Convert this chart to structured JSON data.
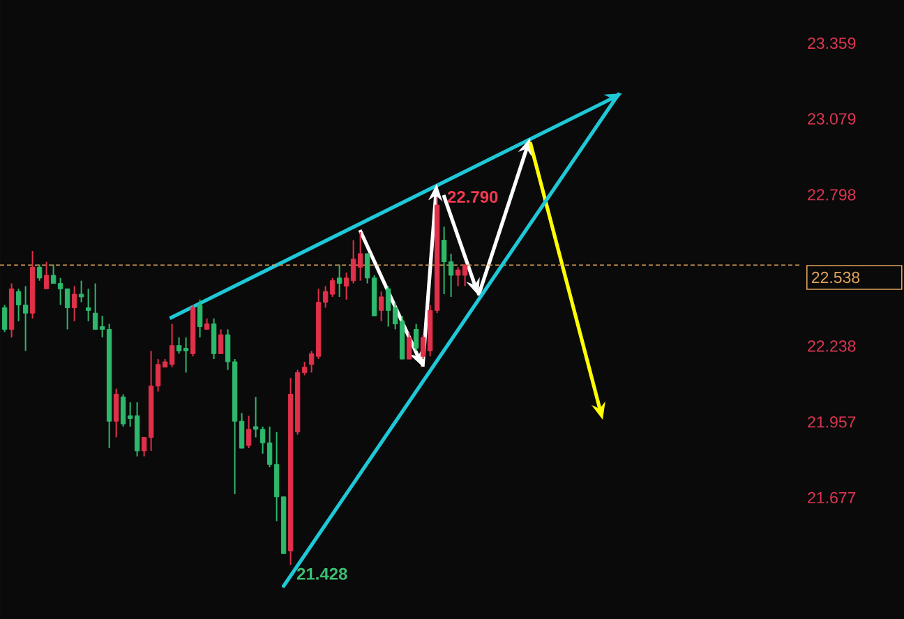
{
  "chart_data": {
    "type": "candlestick",
    "categories": [
      null,
      null,
      null,
      null,
      null,
      null,
      null,
      null,
      null,
      null,
      null,
      null,
      null,
      null,
      null,
      null,
      null,
      null,
      null,
      null,
      null,
      null,
      null,
      null,
      null,
      null,
      null,
      null,
      null,
      null,
      null,
      null,
      null,
      null,
      null,
      null,
      null,
      null,
      null,
      null,
      null,
      null,
      null,
      null,
      null,
      null,
      null,
      null,
      null,
      null,
      null,
      null,
      null,
      null,
      null,
      null,
      null,
      null,
      null,
      null,
      null,
      null,
      null,
      null,
      null,
      null,
      null,
      null,
      null,
      null,
      null,
      null,
      null,
      null,
      null,
      null,
      null,
      null,
      null,
      null,
      null,
      null,
      null,
      null,
      null,
      null,
      null,
      null,
      null,
      null,
      null,
      null,
      null,
      null,
      null,
      null,
      null,
      null,
      null,
      null,
      null,
      null,
      null,
      null,
      null,
      null,
      null,
      null,
      null,
      null,
      null,
      null,
      null,
      null,
      null
    ],
    "ohlc": [
      [
        22.38,
        22.39,
        22.29,
        22.3
      ],
      [
        22.3,
        22.47,
        22.27,
        22.45
      ],
      [
        22.44,
        22.45,
        22.33,
        22.39
      ],
      [
        22.39,
        22.46,
        22.22,
        22.36
      ],
      [
        22.36,
        22.59,
        22.34,
        22.53
      ],
      [
        22.53,
        22.54,
        22.48,
        22.49
      ],
      [
        22.45,
        22.55,
        22.45,
        22.5
      ],
      [
        22.5,
        22.54,
        22.47,
        22.47
      ],
      [
        22.47,
        22.49,
        22.39,
        22.45
      ],
      [
        22.45,
        22.45,
        22.3,
        22.38
      ],
      [
        22.38,
        22.46,
        22.33,
        22.43
      ],
      [
        22.43,
        22.48,
        22.4,
        22.42
      ],
      [
        22.38,
        22.45,
        22.33,
        22.37
      ],
      [
        22.36,
        22.47,
        22.3,
        22.3
      ],
      [
        22.31,
        22.35,
        22.27,
        22.3
      ],
      [
        22.3,
        22.32,
        21.86,
        21.96
      ],
      [
        21.96,
        22.08,
        21.9,
        22.06
      ],
      [
        22.05,
        22.06,
        21.94,
        21.95
      ],
      [
        21.98,
        22.03,
        21.94,
        21.97
      ],
      [
        21.98,
        22.03,
        21.83,
        21.85
      ],
      [
        21.85,
        21.9,
        21.83,
        21.9
      ],
      [
        21.9,
        22.22,
        21.85,
        22.09
      ],
      [
        22.09,
        22.19,
        22.07,
        22.17
      ],
      [
        22.16,
        22.19,
        22.16,
        22.18
      ],
      [
        22.17,
        22.32,
        22.16,
        22.24
      ],
      [
        22.24,
        22.27,
        22.21,
        22.22
      ],
      [
        22.23,
        22.27,
        22.14,
        22.22
      ],
      [
        22.21,
        22.39,
        22.2,
        22.38
      ],
      [
        22.39,
        22.41,
        22.27,
        22.31
      ],
      [
        22.3,
        22.34,
        22.3,
        22.32
      ],
      [
        22.32,
        22.34,
        22.19,
        22.21
      ],
      [
        22.21,
        22.3,
        22.21,
        22.28
      ],
      [
        22.28,
        22.3,
        22.15,
        22.18
      ],
      [
        22.18,
        22.19,
        21.69,
        21.96
      ],
      [
        21.96,
        21.99,
        21.86,
        21.86
      ],
      [
        21.87,
        21.98,
        21.86,
        21.93
      ],
      [
        21.94,
        22.05,
        21.9,
        21.93
      ],
      [
        21.93,
        21.94,
        21.84,
        21.88
      ],
      [
        21.88,
        21.94,
        21.79,
        21.8
      ],
      [
        21.8,
        21.92,
        21.59,
        21.68
      ],
      [
        21.68,
        21.68,
        21.47,
        21.47
      ],
      [
        21.48,
        22.12,
        21.428,
        22.06
      ],
      [
        21.92,
        22.15,
        21.91,
        22.14
      ],
      [
        22.14,
        22.18,
        22.13,
        22.16
      ],
      [
        22.17,
        22.22,
        22.14,
        22.21
      ],
      [
        22.2,
        22.45,
        22.19,
        22.4
      ],
      [
        22.4,
        22.46,
        22.38,
        22.44
      ],
      [
        22.43,
        22.49,
        22.42,
        22.48
      ],
      [
        22.49,
        22.54,
        22.42,
        22.47
      ],
      [
        22.46,
        22.51,
        22.41,
        22.49
      ],
      [
        22.48,
        22.63,
        22.47,
        22.56
      ],
      [
        22.53,
        22.66,
        22.48,
        22.58
      ],
      [
        22.58,
        22.58,
        22.47,
        22.49
      ],
      [
        22.49,
        22.5,
        22.35,
        22.35
      ],
      [
        22.37,
        22.44,
        22.33,
        22.42
      ],
      [
        22.45,
        22.46,
        22.31,
        22.37
      ],
      [
        22.38,
        22.4,
        22.3,
        22.32
      ],
      [
        22.33,
        22.35,
        22.19,
        22.19
      ],
      [
        22.19,
        22.29,
        22.19,
        22.27
      ],
      [
        22.3,
        22.32,
        22.22,
        22.23
      ],
      [
        22.2,
        22.28,
        22.19,
        22.27
      ],
      [
        22.22,
        22.39,
        22.2,
        22.37
      ],
      [
        22.37,
        22.79,
        22.36,
        22.76
      ],
      [
        22.63,
        22.68,
        22.43,
        22.55
      ],
      [
        22.55,
        22.58,
        22.42,
        22.5
      ],
      [
        22.5,
        22.53,
        22.46,
        22.52
      ],
      [
        22.5,
        22.54,
        22.46,
        22.538
      ],
      null,
      null,
      null,
      null,
      null,
      null,
      null,
      null,
      null,
      null,
      null,
      null,
      null,
      null,
      null,
      null,
      null,
      null,
      null,
      null,
      null,
      null,
      null,
      null,
      null,
      null,
      null,
      null,
      null,
      null,
      null,
      null,
      null,
      null,
      null,
      null,
      null,
      null,
      null,
      null,
      null,
      null,
      null,
      null,
      null,
      null,
      null,
      null
    ],
    "colors": [
      "#2eb86c",
      "#e0304a",
      "#2eb86c",
      "#2eb86c",
      "#e0304a",
      "#2eb86c",
      "#e0304a",
      "#2eb86c",
      "#2eb86c",
      "#2eb86c",
      "#e0304a",
      "#2eb86c",
      "#2eb86c",
      "#2eb86c",
      "#2eb86c",
      "#2eb86c",
      "#e0304a",
      "#2eb86c",
      "#2eb86c",
      "#2eb86c",
      "#e0304a",
      "#e0304a",
      "#e0304a",
      "#e0304a",
      "#e0304a",
      "#2eb86c",
      "#2eb86c",
      "#e0304a",
      "#2eb86c",
      "#e0304a",
      "#2eb86c",
      "#e0304a",
      "#2eb86c",
      "#2eb86c",
      "#2eb86c",
      "#e0304a",
      "#2eb86c",
      "#2eb86c",
      "#2eb86c",
      "#2eb86c",
      "#2eb86c",
      "#e0304a",
      "#e0304a",
      "#e0304a",
      "#e0304a",
      "#e0304a",
      "#e0304a",
      "#e0304a",
      "#2eb86c",
      "#e0304a",
      "#e0304a",
      "#e0304a",
      "#2eb86c",
      "#2eb86c",
      "#e0304a",
      "#2eb86c",
      "#2eb86c",
      "#2eb86c",
      "#e0304a",
      "#2eb86c",
      "#e0304a",
      "#e0304a",
      "#e0304a",
      "#2eb86c",
      "#2eb86c",
      "#e0304a",
      "#e0304a",
      null,
      null,
      null,
      null,
      null,
      null,
      null,
      null,
      null,
      null,
      null,
      null,
      null,
      null,
      null,
      null,
      null,
      null,
      null,
      null,
      null,
      null,
      null,
      null,
      null,
      null,
      null,
      null,
      null,
      null,
      null,
      null,
      null,
      null,
      null,
      null,
      null,
      null,
      null,
      null,
      null,
      null,
      null,
      null,
      null,
      null,
      null,
      null
    ],
    "series": [
      {
        "type": "line",
        "color": "#1ec8d6",
        "values": [
          null,
          null,
          null,
          null,
          null,
          null,
          null,
          null,
          null,
          null,
          null,
          null,
          null,
          null,
          null,
          null,
          null,
          null,
          null,
          null,
          null,
          null,
          null,
          null,
          null,
          null,
          null,
          null,
          null,
          null,
          null,
          null,
          null,
          null,
          null,
          null,
          null,
          null,
          null,
          null,
          21.35,
          null,
          null,
          null,
          null,
          null,
          null,
          null,
          null,
          null,
          null,
          null,
          null,
          null,
          null,
          null,
          null,
          null,
          null,
          null,
          null,
          null,
          null,
          null,
          null,
          null,
          null,
          null,
          null,
          null,
          null,
          null,
          null,
          null,
          null,
          null,
          null,
          null,
          null,
          null,
          null,
          null,
          null,
          null,
          null,
          null,
          null,
          null,
          23.17,
          null,
          null,
          null,
          null,
          null,
          null,
          null,
          null,
          null,
          null,
          null,
          null,
          null,
          null,
          null,
          null,
          null,
          null,
          null,
          null,
          null,
          null,
          null,
          null,
          null,
          null
        ]
      }
    ],
    "ylim": [
      21.228,
      23.519
    ],
    "yticks": [
      21.677,
      21.957,
      22.238,
      22.798,
      23.079,
      23.359
    ],
    "tick_labels": "y",
    "ref_lines": [
      {
        "axis": "y",
        "value": 22.538,
        "label": "22.538",
        "color": "#e0a35a",
        "line_style": "dashed"
      }
    ],
    "annotations": [
      "22.790",
      "21.428"
    ]
  }
}
